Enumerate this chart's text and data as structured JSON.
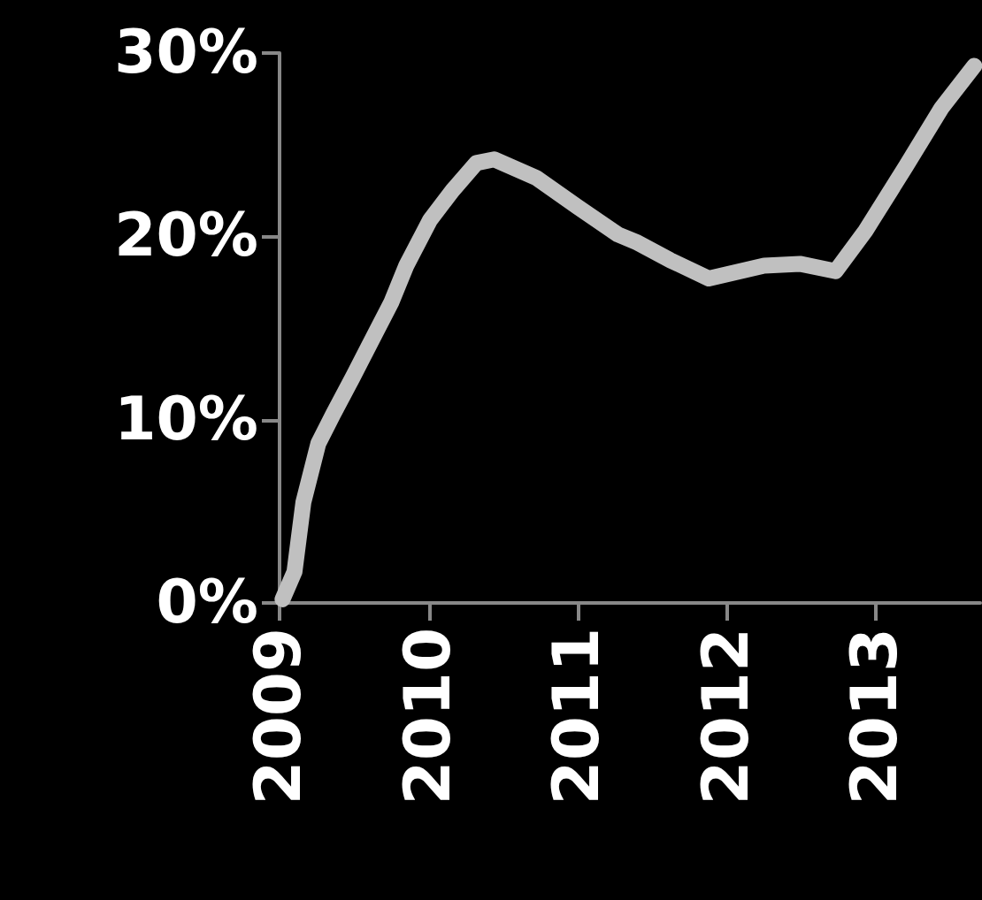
{
  "chart_data": {
    "type": "line",
    "x": [
      2009.02,
      2009.1,
      2009.16,
      2009.26,
      2009.36,
      2009.49,
      2009.61,
      2009.75,
      2009.85,
      2010.01,
      2010.16,
      2010.32,
      2010.44,
      2010.72,
      2011.0,
      2011.27,
      2011.39,
      2011.62,
      2011.88,
      2012.25,
      2012.49,
      2012.73,
      2012.93,
      2013.2,
      2013.44,
      2013.66
    ],
    "series": [
      {
        "color": "#c0c0c0",
        "values": [
          0.2,
          1.7,
          5.5,
          8.7,
          10.3,
          12.3,
          14.2,
          16.4,
          18.4,
          20.9,
          22.5,
          24.0,
          24.2,
          23.2,
          21.6,
          20.1,
          19.7,
          18.7,
          17.7,
          18.4,
          18.5,
          18.1,
          20.3,
          23.8,
          27.0,
          29.3
        ]
      }
    ],
    "xlim": [
      2009,
      2013.7
    ],
    "xticks": [
      2009,
      2010,
      2011,
      2012,
      2013
    ],
    "ylim": [
      0,
      30
    ],
    "yticks": [
      {
        "value": 0,
        "label": "0%"
      },
      {
        "value": 10,
        "label": "10%"
      },
      {
        "value": 20,
        "label": "20%"
      },
      {
        "value": 30,
        "label": "30%"
      }
    ],
    "marker": "none",
    "line_style": "solid"
  }
}
